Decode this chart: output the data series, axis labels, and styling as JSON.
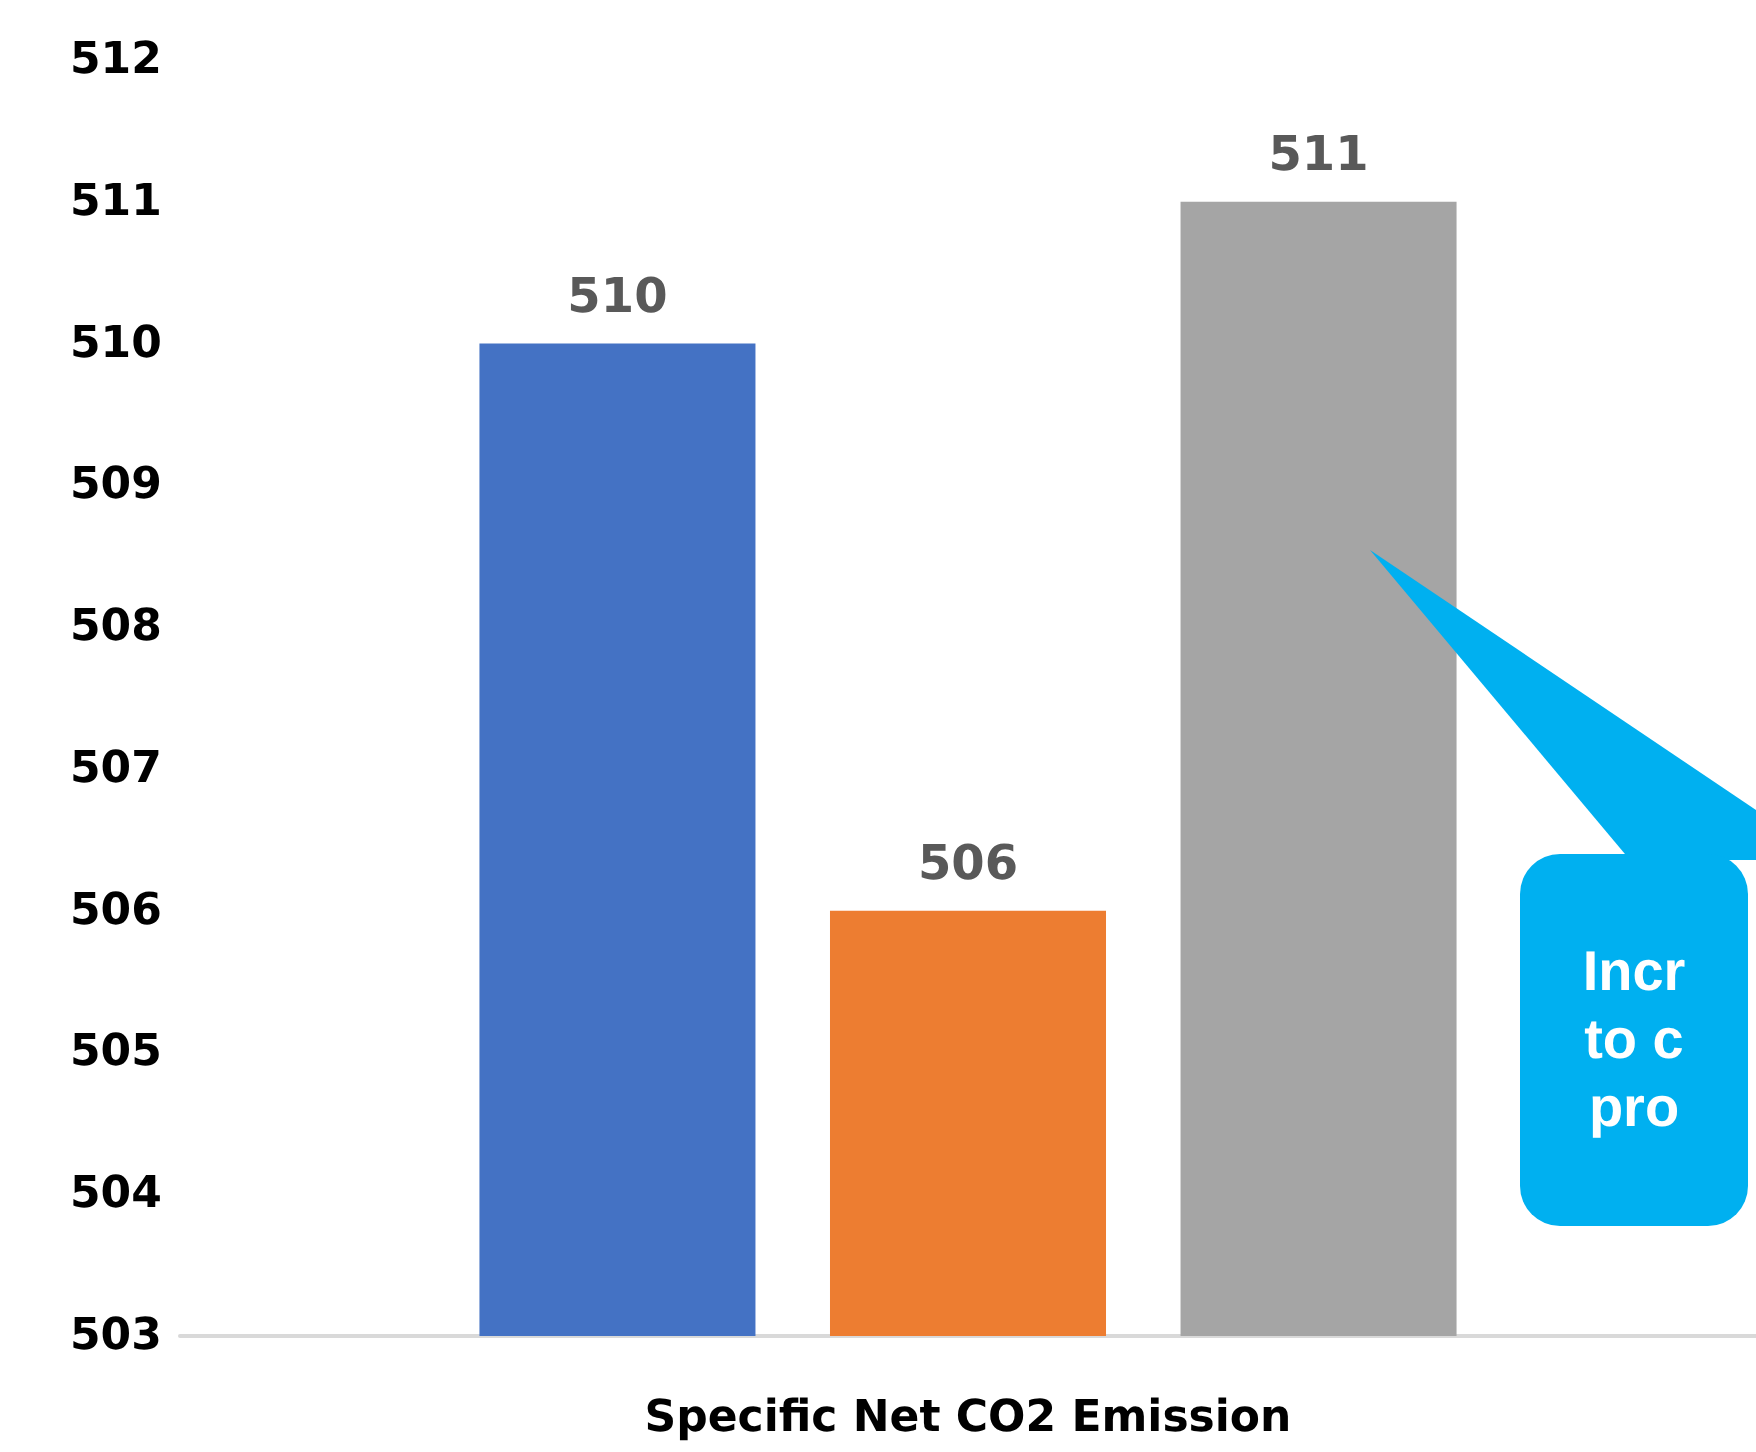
{
  "chart_data": {
    "type": "bar",
    "xlabel": "Specific Net CO2 Emission",
    "categories": [
      null
    ],
    "series": [
      {
        "color": "#4472c4",
        "values": [
          510
        ]
      },
      {
        "color": "#ed7d31",
        "values": [
          506
        ]
      },
      {
        "color": "#a5a5a5",
        "values": [
          511
        ]
      }
    ],
    "ylim": [
      503,
      512
    ],
    "yticks": [
      503,
      504,
      505,
      506,
      507,
      508,
      509,
      510,
      511,
      512
    ],
    "grid": false,
    "data_labels": true,
    "annotations": [
      "Incr\nto c\npro"
    ]
  }
}
